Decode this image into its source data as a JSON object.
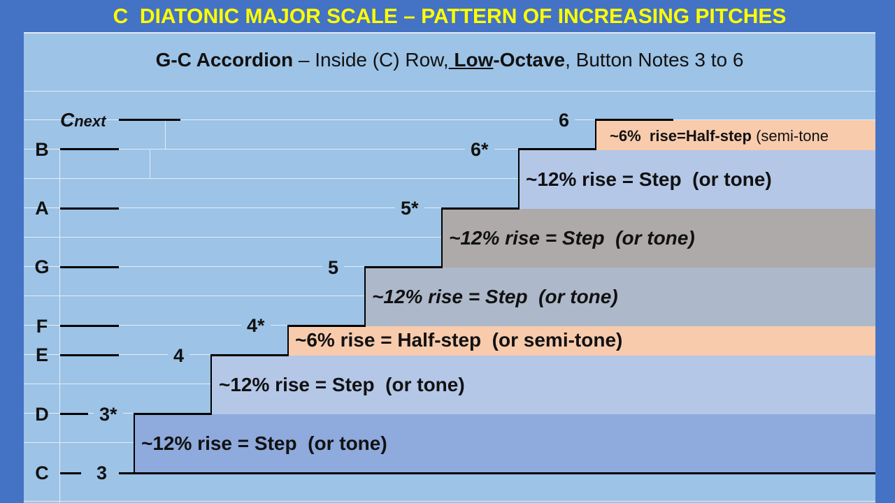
{
  "title": "C  DIATONIC MAJOR SCALE – PATTERN OF INCREASING PITCHES",
  "subtitle": {
    "part1": "G-C Accordion",
    "part2": " – Inside (C) Row,",
    "part3": " Low",
    "part4": "-Octave",
    "part5": ", Button Notes 3 to 6"
  },
  "note_letters": [
    "C",
    "D",
    "E",
    "F",
    "G",
    "A",
    "B"
  ],
  "next_note": {
    "main": "C",
    "sub": "next"
  },
  "button_numbers": [
    "3",
    "3*",
    "4",
    "4*",
    "5",
    "5*",
    "6*",
    "6"
  ],
  "intervals": [
    {
      "label": "~12% rise = Step  (or tone)",
      "color": "#8faadc"
    },
    {
      "label": "~12% rise = Step  (or tone)",
      "color": "#b4c7e7"
    },
    {
      "label": "~6% rise = Half-step  (or semi-tone)",
      "color": "#f8cbad"
    },
    {
      "label": "~12% rise = Step  (or tone)",
      "color": "#adb9ca"
    },
    {
      "label": "~12% rise = Step  (or tone)",
      "color": "#aeaaaa"
    },
    {
      "label": "~12% rise = Step  (or tone)",
      "color": "#b4c7e7"
    },
    {
      "label_bold": "~6%  rise=Half-step",
      "label_thin": " (semi-tone",
      "color": "#f8cbad"
    }
  ],
  "colors": {
    "background": "#4472c4",
    "slide": "#9dc3e6",
    "title_text": "#ffff00"
  }
}
